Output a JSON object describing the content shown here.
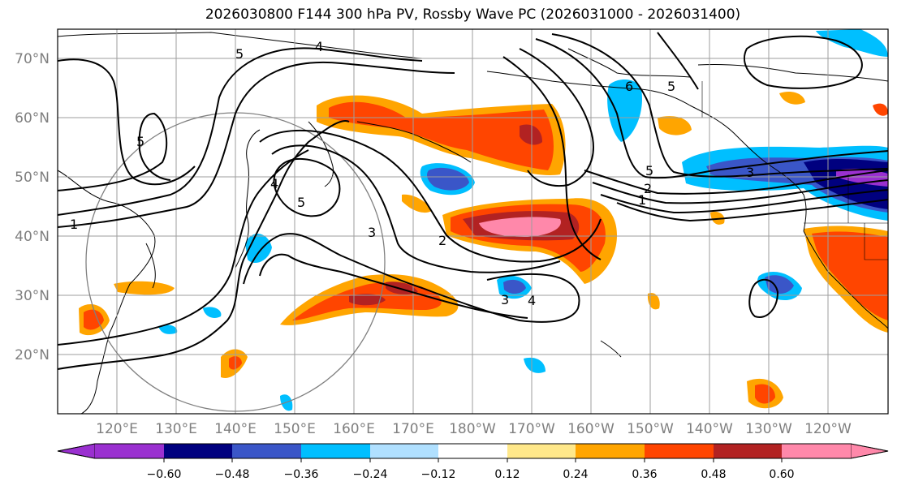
{
  "title": "2026030800 F144 300 hPa PV, Rossby Wave PC (2026031000 - 2026031400)",
  "latitude_labels": [
    "70°N",
    "60°N",
    "50°N",
    "40°N",
    "30°N",
    "20°N"
  ],
  "longitude_labels": [
    "120°E",
    "130°E",
    "140°E",
    "150°E",
    "160°E",
    "170°E",
    "180°W",
    "170°W",
    "160°W",
    "150°W",
    "140°W",
    "130°W",
    "120°W"
  ],
  "colorbar": {
    "ticks": [
      "−0.60",
      "−0.48",
      "−0.36",
      "−0.24",
      "−0.12",
      "0.12",
      "0.24",
      "0.36",
      "0.48",
      "0.60"
    ],
    "colors": [
      "#9a30d0",
      "#00007f",
      "#3a56c8",
      "#00bfff",
      "#b0e0ff",
      "#ffffff",
      "#ffe88a",
      "#ffa500",
      "#ff4500",
      "#b22222",
      "#ff88aa"
    ]
  },
  "contour_labels": {
    "c1": "1",
    "c2": "2",
    "c3": "3",
    "c4": "4",
    "c5": "5",
    "c6": "6"
  },
  "chart_data": {
    "type": "map",
    "title": "2026030800 F144 300 hPa PV, Rossby Wave PC (2026031000 - 2026031400)",
    "projection": "equirectangular",
    "lon_range": [
      "110°E",
      "250°E"
    ],
    "lat_range": [
      10,
      75
    ],
    "contour_field": "300 hPa PV (PVU)",
    "contour_levels": [
      1,
      2,
      3,
      4,
      5,
      6
    ],
    "shaded_field": "Rossby Wave PC",
    "shading_levels": [
      -0.6,
      -0.48,
      -0.36,
      -0.24,
      -0.12,
      0.12,
      0.24,
      0.36,
      0.48,
      0.6
    ]
  }
}
